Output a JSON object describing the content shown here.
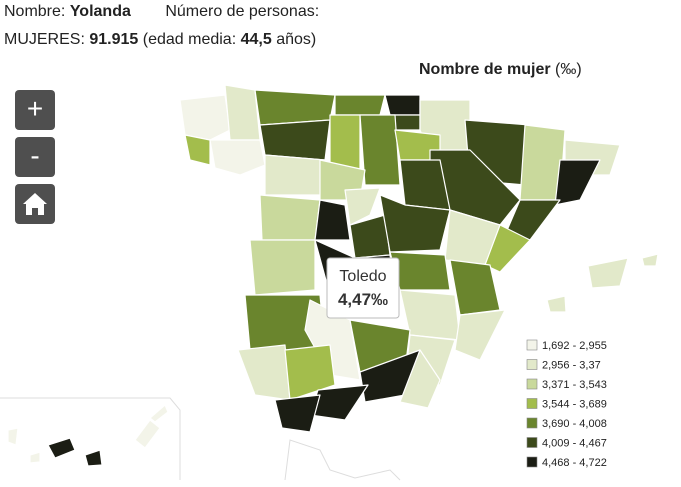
{
  "header": {
    "name_label": "Nombre:",
    "name": "Yolanda",
    "count_label": "Número de personas:",
    "women_label": "MUJERES:",
    "women_count": "91.915",
    "age_label": "(edad media:",
    "age": "44,5",
    "age_unit": "años)"
  },
  "map": {
    "title": "Nombre de mujer",
    "title_unit": "(‰)",
    "controls": {
      "zoom_in": "+",
      "zoom_out": "-"
    },
    "tooltip": {
      "province": "Toledo",
      "value": "4,47‰"
    },
    "legend": [
      {
        "label": "1,692 - 2,955",
        "color": "#f3f4e9"
      },
      {
        "label": "2,956 - 3,37",
        "color": "#e2e9ca"
      },
      {
        "label": "3,371 - 3,543",
        "color": "#c9d99c"
      },
      {
        "label": "3,544 - 3,689",
        "color": "#a3bd4c"
      },
      {
        "label": "3,690 - 4,008",
        "color": "#6a852d"
      },
      {
        "label": "4,009 - 4,467",
        "color": "#3c4a1b"
      },
      {
        "label": "4,468 - 4,722",
        "color": "#1b1d14"
      }
    ]
  }
}
